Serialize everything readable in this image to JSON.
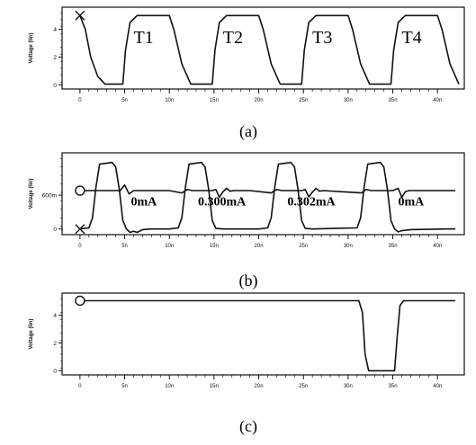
{
  "chart_data": [
    {
      "id": "a",
      "type": "line",
      "caption": "(a)",
      "ylabel": "Voltage (lin)",
      "xlabel": "",
      "xlim": [
        -2,
        43
      ],
      "ylim": [
        -0.3,
        5.6
      ],
      "x_ticks": [
        0,
        5,
        10,
        15,
        20,
        25,
        30,
        35,
        40
      ],
      "x_tick_labels": [
        "0",
        "5n",
        "10n",
        "15n",
        "20n",
        "25n",
        "30n",
        "35n",
        "40n"
      ],
      "y_ticks": [
        0,
        2,
        4
      ],
      "y_tick_labels": [
        "0",
        "2",
        "4"
      ],
      "series": [
        {
          "marker": "x",
          "x": [
            0,
            0.6,
            1.2,
            2.0,
            2.8,
            4.8,
            5.1,
            5.6,
            6.4,
            10.0,
            10.5,
            11.4,
            12.4,
            14.8,
            15.1,
            15.6,
            16.4,
            20.0,
            20.5,
            21.4,
            22.4,
            24.8,
            25.1,
            25.6,
            26.4,
            30.0,
            30.5,
            31.4,
            32.4,
            34.8,
            35.1,
            35.6,
            36.4,
            40.0,
            40.5,
            41.4,
            42.4
          ],
          "y": [
            5.0,
            4.0,
            2.0,
            0.6,
            0.05,
            0.05,
            2.5,
            4.5,
            5.0,
            5.0,
            4.0,
            1.5,
            0.05,
            0.05,
            2.5,
            4.5,
            5.0,
            5.0,
            4.0,
            1.5,
            0.05,
            0.05,
            2.5,
            4.5,
            5.0,
            5.0,
            4.0,
            1.5,
            0.05,
            0.05,
            2.5,
            4.5,
            5.0,
            5.0,
            4.0,
            1.5,
            0.05
          ]
        }
      ],
      "annotations": [
        {
          "text": "T1",
          "x": 6.0,
          "y": 3.0
        },
        {
          "text": "T2",
          "x": 16.0,
          "y": 3.0
        },
        {
          "text": "T3",
          "x": 26.0,
          "y": 3.0
        },
        {
          "text": "T4",
          "x": 36.0,
          "y": 3.0
        }
      ]
    },
    {
      "id": "b",
      "type": "line",
      "caption": "(b)",
      "ylabel": "Voltage (lin)",
      "xlabel": "",
      "xlim": [
        -2,
        43
      ],
      "ylim": [
        -0.1,
        1.35
      ],
      "x_ticks": [
        0,
        5,
        10,
        15,
        20,
        25,
        30,
        35,
        40
      ],
      "x_tick_labels": [
        "0",
        "5n",
        "10n",
        "15n",
        "20n",
        "25n",
        "30n",
        "35n",
        "40n"
      ],
      "y_ticks": [
        0,
        0.6
      ],
      "y_tick_labels": [
        "0",
        "600m"
      ],
      "series": [
        {
          "marker": "x",
          "x": [
            0,
            1.0,
            1.4,
            1.8,
            2.2,
            3.6,
            4.0,
            4.4,
            4.8,
            5.2,
            5.6,
            6.0,
            6.4,
            7.0,
            8.0,
            10.0,
            11.0,
            11.4,
            11.8,
            12.2,
            13.6,
            14.0,
            14.4,
            14.8,
            15.2,
            16.0,
            20.0,
            21.0,
            21.4,
            21.8,
            22.2,
            23.6,
            24.0,
            24.4,
            24.8,
            25.2,
            26.0,
            31.0,
            31.4,
            31.8,
            32.2,
            33.6,
            34.0,
            34.4,
            34.8,
            35.2,
            35.6,
            36.0,
            37.0,
            41.0,
            41.5,
            42.0
          ],
          "y": [
            0.0,
            0.02,
            0.2,
            0.75,
            1.15,
            1.18,
            1.1,
            0.7,
            0.15,
            0.0,
            -0.06,
            -0.04,
            -0.06,
            -0.01,
            0.0,
            0.0,
            0.02,
            0.2,
            0.75,
            1.15,
            1.18,
            1.1,
            0.7,
            0.15,
            0.01,
            0.0,
            0.0,
            0.02,
            0.2,
            0.75,
            1.15,
            1.18,
            1.1,
            0.7,
            0.15,
            0.01,
            0.0,
            0.02,
            0.2,
            0.75,
            1.15,
            1.18,
            1.1,
            0.7,
            0.15,
            0.0,
            -0.05,
            -0.03,
            -0.01,
            0.0,
            0.0,
            0.0
          ]
        },
        {
          "marker": "o",
          "x": [
            0,
            2.5,
            4.5,
            5.0,
            5.5,
            6.0,
            8.0,
            10.0,
            11.4,
            12.0,
            12.6,
            14.8,
            15.2,
            15.6,
            16.0,
            16.4,
            16.8,
            17.2,
            19.0,
            21.4,
            22.0,
            22.6,
            24.8,
            25.2,
            25.6,
            26.0,
            26.4,
            26.8,
            27.2,
            31.5,
            32.0,
            32.6,
            35.0,
            35.6,
            36.0,
            36.4,
            36.8,
            38.0,
            42.0
          ],
          "y": [
            0.68,
            0.68,
            0.68,
            0.78,
            0.62,
            0.68,
            0.68,
            0.68,
            0.64,
            0.7,
            0.68,
            0.68,
            0.7,
            0.56,
            0.66,
            0.72,
            0.67,
            0.68,
            0.68,
            0.64,
            0.7,
            0.68,
            0.68,
            0.7,
            0.57,
            0.65,
            0.72,
            0.67,
            0.68,
            0.64,
            0.7,
            0.68,
            0.68,
            0.72,
            0.56,
            0.66,
            0.68,
            0.68,
            0.68
          ]
        }
      ],
      "annotations": [
        {
          "text": "0mA",
          "x": 5.7,
          "y": 0.42
        },
        {
          "text": "0.300mA",
          "x": 13.2,
          "y": 0.42
        },
        {
          "text": "0.302mA",
          "x": 23.2,
          "y": 0.42
        },
        {
          "text": "0mA",
          "x": 35.6,
          "y": 0.42
        }
      ]
    },
    {
      "id": "c",
      "type": "line",
      "caption": "(c)",
      "ylabel": "Voltage (lin)",
      "xlabel": "",
      "xlim": [
        -2,
        43
      ],
      "ylim": [
        -0.3,
        5.6
      ],
      "x_ticks": [
        0,
        5,
        10,
        15,
        20,
        25,
        30,
        35,
        40
      ],
      "x_tick_labels": [
        "0",
        "5n",
        "10n",
        "15n",
        "20n",
        "25n",
        "30n",
        "35n",
        "40n"
      ],
      "y_ticks": [
        0,
        2,
        4
      ],
      "y_tick_labels": [
        "0",
        "2",
        "4"
      ],
      "series": [
        {
          "marker": "o",
          "x": [
            0,
            31.2,
            31.6,
            31.9,
            32.3,
            35.2,
            35.5,
            35.8,
            36.2,
            42.0
          ],
          "y": [
            5.05,
            5.05,
            4.2,
            1.2,
            0.0,
            0.0,
            2.5,
            4.7,
            5.05,
            5.05
          ]
        }
      ]
    }
  ]
}
